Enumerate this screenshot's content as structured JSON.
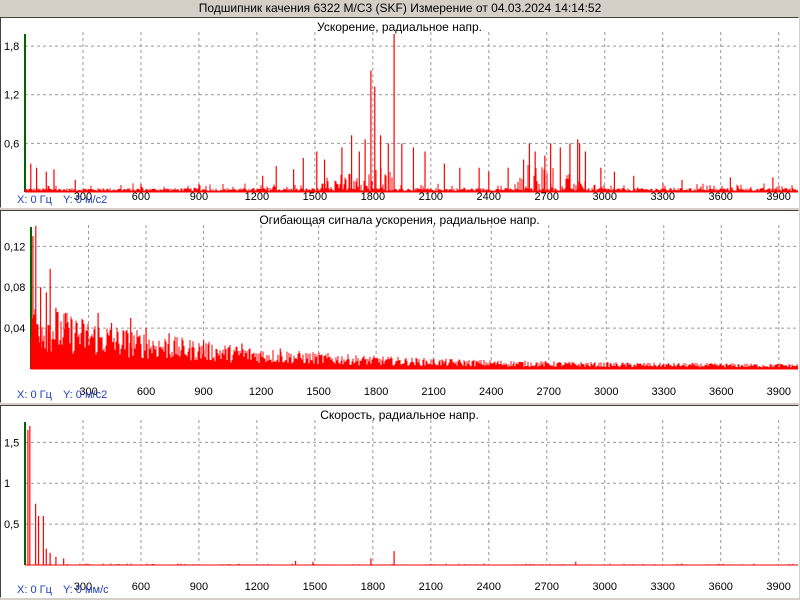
{
  "window": {
    "title": "Подшипник качения 6322 M/C3 (SKF)  Измерение от 04.03.2024 14:14:52"
  },
  "colors": {
    "signal": "#ff0000",
    "grid": "#9a9a9a",
    "axis_marker": "#006400",
    "readout": "#1f3fbf"
  },
  "chart_data": [
    {
      "type": "line",
      "title": "Ускорение, радиальное напр.",
      "x_ticks": [
        300,
        600,
        900,
        1200,
        1500,
        1800,
        2100,
        2400,
        2700,
        3000,
        3300,
        3600,
        3900
      ],
      "y_ticks": [
        {
          "v": 0.6,
          "label": "0,6"
        },
        {
          "v": 1.2,
          "label": "1,2"
        },
        {
          "v": 1.8,
          "label": "1,8"
        }
      ],
      "xlim": [
        0,
        4000
      ],
      "ylim": [
        0,
        1.9
      ],
      "readout": {
        "x": "X: 0 Гц",
        "y": "Y: 0 м/с2"
      },
      "noise": {
        "floor": 0.04,
        "var": 0.06
      },
      "peaks": [
        [
          30,
          0.35
        ],
        [
          60,
          0.3
        ],
        [
          110,
          0.25
        ],
        [
          150,
          0.28
        ],
        [
          260,
          0.15
        ],
        [
          600,
          0.1
        ],
        [
          900,
          0.1
        ],
        [
          1230,
          0.2
        ],
        [
          1300,
          0.32
        ],
        [
          1390,
          0.28
        ],
        [
          1440,
          0.42
        ],
        [
          1510,
          0.5
        ],
        [
          1550,
          0.4
        ],
        [
          1640,
          0.55
        ],
        [
          1690,
          0.7
        ],
        [
          1730,
          0.5
        ],
        [
          1760,
          0.65
        ],
        [
          1790,
          1.5
        ],
        [
          1810,
          1.3
        ],
        [
          1840,
          0.7
        ],
        [
          1880,
          0.6
        ],
        [
          1910,
          1.95
        ],
        [
          1950,
          0.6
        ],
        [
          2010,
          0.55
        ],
        [
          2070,
          0.5
        ],
        [
          2170,
          0.35
        ],
        [
          2250,
          0.3
        ],
        [
          2350,
          0.3
        ],
        [
          2400,
          0.25
        ],
        [
          2500,
          0.3
        ],
        [
          2580,
          0.4
        ],
        [
          2610,
          0.6
        ],
        [
          2640,
          0.5
        ],
        [
          2690,
          0.45
        ],
        [
          2720,
          0.6
        ],
        [
          2770,
          0.55
        ],
        [
          2820,
          0.6
        ],
        [
          2860,
          0.65
        ],
        [
          2870,
          0.6
        ],
        [
          2900,
          0.5
        ],
        [
          2980,
          0.3
        ],
        [
          3050,
          0.25
        ],
        [
          3150,
          0.2
        ],
        [
          3400,
          0.15
        ],
        [
          3650,
          0.18
        ],
        [
          3870,
          0.18
        ]
      ],
      "clusters": [
        [
          1800,
          1950,
          0.35
        ],
        [
          2550,
          2900,
          0.3
        ],
        [
          1550,
          1800,
          0.2
        ]
      ]
    },
    {
      "type": "line",
      "title": "Огибающая сигнала ускорения, радиальное напр.",
      "x_ticks": [
        300,
        600,
        900,
        1200,
        1500,
        1800,
        2100,
        2400,
        2700,
        3000,
        3300,
        3600,
        3900
      ],
      "y_ticks": [
        {
          "v": 0.04,
          "label": "0,04"
        },
        {
          "v": 0.08,
          "label": "0,08"
        },
        {
          "v": 0.12,
          "label": "0,12"
        }
      ],
      "xlim": [
        0,
        4000
      ],
      "ylim": [
        0,
        0.135
      ],
      "readout": {
        "x": "X: 0 Гц",
        "y": "Y: 0 м/с2"
      },
      "envelope": {
        "start": 0.045,
        "end": 0.003,
        "decay": 900
      },
      "peaks": [
        [
          10,
          0.13
        ],
        [
          25,
          0.14
        ],
        [
          50,
          0.08
        ],
        [
          80,
          0.075
        ],
        [
          100,
          0.098
        ],
        [
          130,
          0.06
        ],
        [
          180,
          0.055
        ],
        [
          240,
          0.045
        ],
        [
          350,
          0.055
        ],
        [
          420,
          0.045
        ],
        [
          520,
          0.05
        ],
        [
          600,
          0.04
        ],
        [
          720,
          0.035
        ],
        [
          900,
          0.028
        ],
        [
          1100,
          0.025
        ],
        [
          1300,
          0.02
        ]
      ]
    },
    {
      "type": "line",
      "title": "Скорость, радиальное напр.",
      "x_ticks": [
        300,
        600,
        900,
        1200,
        1500,
        1800,
        2100,
        2400,
        2700,
        3000,
        3300,
        3600,
        3900
      ],
      "y_ticks": [
        {
          "v": 0.5,
          "label": "0,5"
        },
        {
          "v": 1,
          "label": "1"
        },
        {
          "v": 1.5,
          "label": "1,5"
        }
      ],
      "xlim": [
        0,
        4000
      ],
      "ylim": [
        0,
        1.7
      ],
      "readout": {
        "x": "X: 0 Гц",
        "y": "Y: 0 мм/с"
      },
      "noise": {
        "floor": 0.005,
        "var": 0.01
      },
      "peaks": [
        [
          15,
          1.65
        ],
        [
          25,
          1.7
        ],
        [
          55,
          0.75
        ],
        [
          70,
          0.6
        ],
        [
          95,
          0.6
        ],
        [
          110,
          0.2
        ],
        [
          130,
          0.15
        ],
        [
          160,
          0.1
        ],
        [
          200,
          0.08
        ],
        [
          1400,
          0.05
        ],
        [
          1490,
          0.04
        ],
        [
          1790,
          0.08
        ],
        [
          1910,
          0.17
        ],
        [
          2850,
          0.04
        ]
      ]
    }
  ]
}
